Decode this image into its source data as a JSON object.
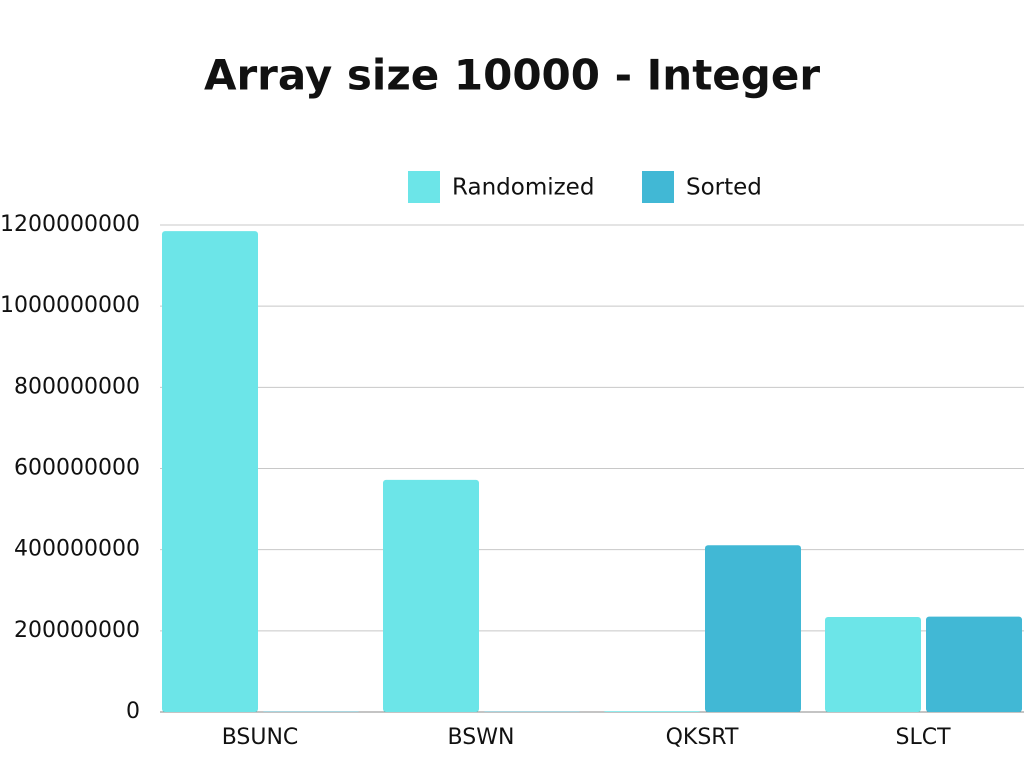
{
  "chart_data": {
    "type": "bar",
    "title": "Array size 10000 - Integer",
    "categories": [
      "BSUNC",
      "BSWN",
      "QKSRT",
      "SLCT"
    ],
    "series": [
      {
        "name": "Randomized",
        "color": "#6ce5e8",
        "values": [
          1185000000,
          572000000,
          2000000,
          234000000
        ]
      },
      {
        "name": "Sorted",
        "color": "#41b8d5",
        "values": [
          1000000,
          1000000,
          411000000,
          235000000
        ]
      }
    ],
    "ylim": [
      0,
      1200000000
    ],
    "yticks": [
      0,
      200000000,
      400000000,
      600000000,
      800000000,
      1000000000,
      1200000000
    ],
    "grid": true,
    "legend": "top"
  }
}
